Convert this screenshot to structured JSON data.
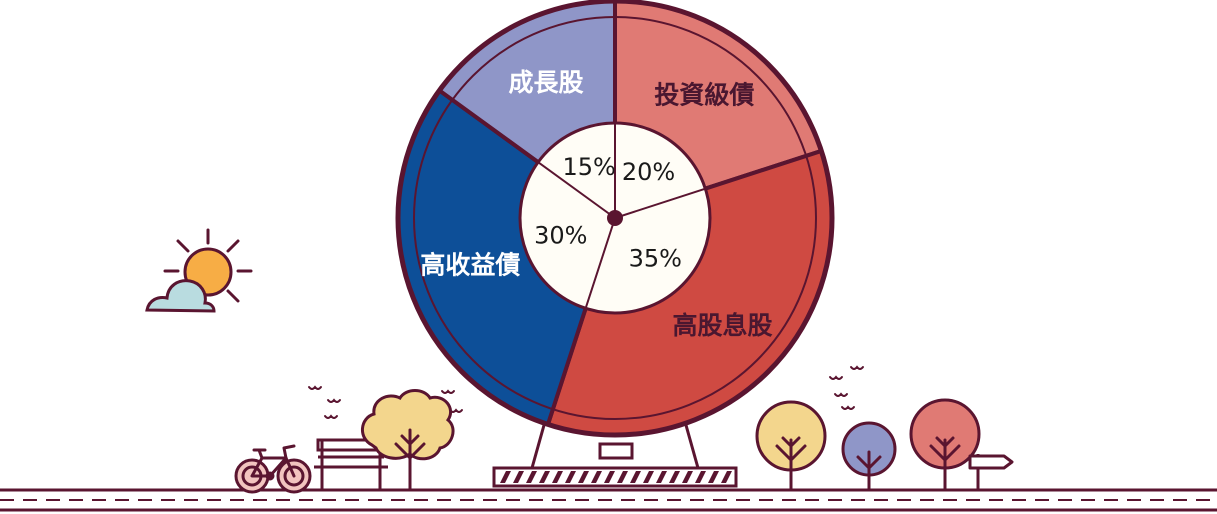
{
  "chart_data": {
    "type": "pie",
    "title": "",
    "categories": [
      "投資級債",
      "高股息股",
      "高收益債",
      "成長股"
    ],
    "values": [
      20,
      35,
      30,
      15
    ],
    "value_labels": [
      "20%",
      "35%",
      "30%",
      "15%"
    ],
    "colors": [
      "#e07a74",
      "#cf4a42",
      "#0d4f98",
      "#8f96c8"
    ],
    "label_colors": [
      "#4a1730",
      "#4a1730",
      "#ffffff",
      "#ffffff"
    ],
    "start": "12 o'clock",
    "direction": "clockwise"
  },
  "palette": {
    "outline": "#5a1530",
    "center_fill": "#fffdf6",
    "sun": "#f7ad45",
    "cloud": "#b9dce0",
    "tree_yellow": "#f3d68d",
    "tree_purple": "#8f96c8",
    "tree_red": "#e07a74"
  },
  "icons": [
    "sun-icon",
    "cloud-icon",
    "bicycle-icon",
    "bench-icon",
    "tree-icon",
    "signpost-icon",
    "bird-icon",
    "road"
  ]
}
